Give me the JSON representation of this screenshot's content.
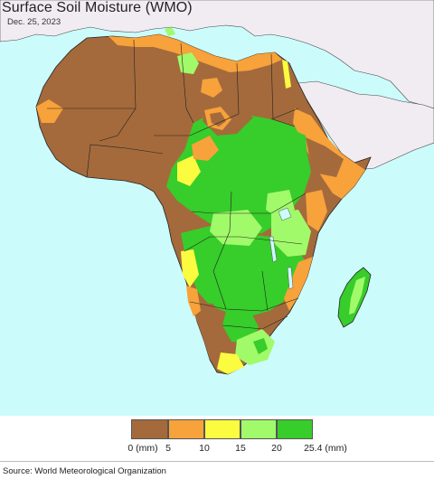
{
  "header": {
    "title": "Surface Soil Moisture (WMO)",
    "date": "Dec. 25, 2023"
  },
  "map": {
    "ocean_color": "#ccfbfb",
    "land_color": "#f1ecf1",
    "border_color": "#222222"
  },
  "legend": {
    "classes": [
      {
        "from": "0 (mm)",
        "color": "#a46a3c"
      },
      {
        "from": "5",
        "color": "#f7a23a"
      },
      {
        "from": "10",
        "color": "#fbfb3f"
      },
      {
        "from": "15",
        "color": "#a1fa6a"
      },
      {
        "from": "20",
        "color": "#37cd2a"
      }
    ],
    "ticks": [
      "0 (mm)",
      "5",
      "10",
      "15",
      "20",
      "25.4 (mm)"
    ]
  },
  "footer": {
    "source": "Source: World Meteorological Organization"
  }
}
